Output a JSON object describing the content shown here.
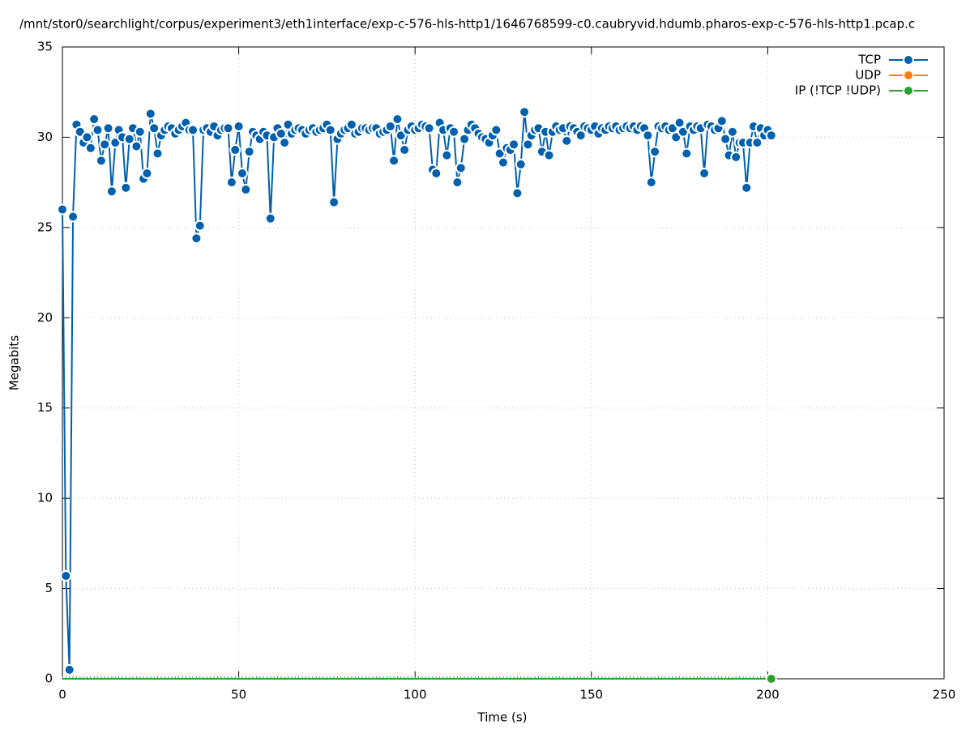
{
  "chart_data": {
    "type": "line",
    "title": "/mnt/stor0/searchlight/corpus/experiment3/eth1interface/exp-c-576-hls-http1/1646768599-c0.caubryvid.hdumb.pharos-exp-c-576-hls-http1.pcap.c",
    "x_label": "Time (s)",
    "y_label": "Megabits",
    "xlim": [
      0,
      250
    ],
    "xticks": [
      0,
      50,
      100,
      150,
      200,
      250
    ],
    "ylim": [
      0,
      35
    ],
    "yticks": [
      0,
      5,
      10,
      15,
      20,
      25,
      30,
      35
    ],
    "grid": true,
    "legend": "top-right",
    "x": [
      0,
      1,
      2,
      3,
      4,
      5,
      6,
      7,
      8,
      9,
      10,
      11,
      12,
      13,
      14,
      15,
      16,
      17,
      18,
      19,
      20,
      21,
      22,
      23,
      24,
      25,
      26,
      27,
      28,
      29,
      30,
      31,
      32,
      33,
      34,
      35,
      36,
      37,
      38,
      39,
      40,
      41,
      42,
      43,
      44,
      45,
      46,
      47,
      48,
      49,
      50,
      51,
      52,
      53,
      54,
      55,
      56,
      57,
      58,
      59,
      60,
      61,
      62,
      63,
      64,
      65,
      66,
      67,
      68,
      69,
      70,
      71,
      72,
      73,
      74,
      75,
      76,
      77,
      78,
      79,
      80,
      81,
      82,
      83,
      84,
      85,
      86,
      87,
      88,
      89,
      90,
      91,
      92,
      93,
      94,
      95,
      96,
      97,
      98,
      99,
      100,
      101,
      102,
      103,
      104,
      105,
      106,
      107,
      108,
      109,
      110,
      111,
      112,
      113,
      114,
      115,
      116,
      117,
      118,
      119,
      120,
      121,
      122,
      123,
      124,
      125,
      126,
      127,
      128,
      129,
      130,
      131,
      132,
      133,
      134,
      135,
      136,
      137,
      138,
      139,
      140,
      141,
      142,
      143,
      144,
      145,
      146,
      147,
      148,
      149,
      150,
      151,
      152,
      153,
      154,
      155,
      156,
      157,
      158,
      159,
      160,
      161,
      162,
      163,
      164,
      165,
      166,
      167,
      168,
      169,
      170,
      171,
      172,
      173,
      174,
      175,
      176,
      177,
      178,
      179,
      180,
      181,
      182,
      183,
      184,
      185,
      186,
      187,
      188,
      189,
      190,
      191,
      192,
      193,
      194,
      195,
      196,
      197,
      198,
      199,
      200,
      201
    ],
    "series": [
      {
        "name": "TCP",
        "color": "#0060ad",
        "values": [
          26.0,
          5.7,
          0.5,
          25.6,
          30.7,
          30.3,
          29.7,
          30.0,
          29.4,
          31.0,
          30.4,
          28.7,
          29.6,
          30.5,
          27.0,
          29.7,
          30.4,
          30.0,
          27.2,
          29.9,
          30.5,
          29.5,
          30.3,
          27.7,
          28.0,
          31.3,
          30.5,
          29.1,
          30.1,
          30.4,
          30.6,
          30.5,
          30.2,
          30.4,
          30.6,
          30.8,
          30.4,
          30.4,
          24.4,
          25.1,
          30.4,
          30.5,
          30.3,
          30.6,
          30.1,
          30.4,
          30.5,
          30.5,
          27.5,
          29.3,
          30.6,
          28.0,
          27.1,
          29.2,
          30.3,
          30.1,
          29.9,
          30.3,
          30.1,
          25.5,
          30.0,
          30.5,
          30.2,
          29.7,
          30.7,
          30.2,
          30.4,
          30.5,
          30.4,
          30.2,
          30.4,
          30.5,
          30.3,
          30.4,
          30.5,
          30.7,
          30.4,
          26.4,
          29.9,
          30.2,
          30.4,
          30.5,
          30.7,
          30.2,
          30.3,
          30.5,
          30.5,
          30.4,
          30.5,
          30.5,
          30.2,
          30.3,
          30.4,
          30.6,
          28.7,
          31.0,
          30.1,
          29.3,
          30.4,
          30.6,
          30.4,
          30.5,
          30.7,
          30.6,
          30.5,
          28.2,
          28.0,
          30.8,
          30.4,
          29.0,
          30.5,
          30.3,
          27.5,
          28.3,
          29.9,
          30.4,
          30.7,
          30.5,
          30.2,
          30.0,
          29.9,
          29.7,
          30.1,
          30.4,
          29.1,
          28.6,
          29.4,
          29.3,
          29.6,
          26.9,
          28.5,
          31.4,
          29.6,
          30.1,
          30.4,
          30.5,
          29.2,
          30.3,
          29.0,
          30.3,
          30.6,
          30.4,
          30.5,
          29.8,
          30.6,
          30.5,
          30.3,
          30.1,
          30.6,
          30.5,
          30.4,
          30.6,
          30.2,
          30.5,
          30.4,
          30.6,
          30.5,
          30.6,
          30.4,
          30.5,
          30.6,
          30.5,
          30.6,
          30.4,
          30.6,
          30.5,
          30.1,
          27.5,
          29.2,
          30.6,
          30.5,
          30.6,
          30.4,
          30.5,
          30.0,
          30.8,
          30.3,
          29.1,
          30.6,
          30.4,
          30.6,
          30.5,
          28.0,
          30.7,
          30.6,
          30.4,
          30.5,
          30.9,
          29.9,
          29.0,
          30.3,
          28.9,
          29.7,
          29.7,
          27.2,
          29.7,
          30.6,
          29.7,
          30.5,
          30.1,
          30.4,
          30.1
        ]
      },
      {
        "name": "UDP",
        "color": "#ff7f0e",
        "values": [
          0,
          0,
          0,
          0,
          0,
          0,
          0,
          0,
          0,
          0,
          0,
          0,
          0,
          0,
          0,
          0,
          0,
          0,
          0,
          0,
          0,
          0,
          0,
          0,
          0,
          0,
          0,
          0,
          0,
          0,
          0,
          0,
          0,
          0,
          0,
          0,
          0,
          0,
          0,
          0,
          0,
          0,
          0,
          0,
          0,
          0,
          0,
          0,
          0,
          0,
          0,
          0,
          0,
          0,
          0,
          0,
          0,
          0,
          0,
          0,
          0,
          0,
          0,
          0,
          0,
          0,
          0,
          0,
          0,
          0,
          0,
          0,
          0,
          0,
          0,
          0,
          0,
          0,
          0,
          0,
          0,
          0,
          0,
          0,
          0,
          0,
          0,
          0,
          0,
          0,
          0,
          0,
          0,
          0,
          0,
          0,
          0,
          0,
          0,
          0,
          0,
          0,
          0,
          0,
          0,
          0,
          0,
          0,
          0,
          0,
          0,
          0,
          0,
          0,
          0,
          0,
          0,
          0,
          0,
          0,
          0,
          0,
          0,
          0,
          0,
          0,
          0,
          0,
          0,
          0,
          0,
          0,
          0,
          0,
          0,
          0,
          0,
          0,
          0,
          0,
          0,
          0,
          0,
          0,
          0,
          0,
          0,
          0,
          0,
          0,
          0,
          0,
          0,
          0,
          0,
          0,
          0,
          0,
          0,
          0,
          0,
          0,
          0,
          0,
          0,
          0,
          0,
          0,
          0,
          0,
          0,
          0,
          0,
          0,
          0,
          0,
          0,
          0,
          0,
          0,
          0,
          0,
          0,
          0,
          0,
          0,
          0,
          0,
          0,
          0,
          0,
          0,
          0,
          0,
          0,
          0,
          0,
          0,
          0,
          0,
          0,
          0
        ]
      },
      {
        "name": "IP (!TCP  !UDP)",
        "color": "#2ca02c",
        "values": [
          0,
          0,
          0,
          0,
          0,
          0,
          0,
          0,
          0,
          0,
          0,
          0,
          0,
          0,
          0,
          0,
          0,
          0,
          0,
          0,
          0,
          0,
          0,
          0,
          0,
          0,
          0,
          0,
          0,
          0,
          0,
          0,
          0,
          0,
          0,
          0,
          0,
          0,
          0,
          0,
          0,
          0,
          0,
          0,
          0,
          0,
          0,
          0,
          0,
          0,
          0,
          0,
          0,
          0,
          0,
          0,
          0,
          0,
          0,
          0,
          0,
          0,
          0,
          0,
          0,
          0,
          0,
          0,
          0,
          0,
          0,
          0,
          0,
          0,
          0,
          0,
          0,
          0,
          0,
          0,
          0,
          0,
          0,
          0,
          0,
          0,
          0,
          0,
          0,
          0,
          0,
          0,
          0,
          0,
          0,
          0,
          0,
          0,
          0,
          0,
          0,
          0,
          0,
          0,
          0,
          0,
          0,
          0,
          0,
          0,
          0,
          0,
          0,
          0,
          0,
          0,
          0,
          0,
          0,
          0,
          0,
          0,
          0,
          0,
          0,
          0,
          0,
          0,
          0,
          0,
          0,
          0,
          0,
          0,
          0,
          0,
          0,
          0,
          0,
          0,
          0,
          0,
          0,
          0,
          0,
          0,
          0,
          0,
          0,
          0,
          0,
          0,
          0,
          0,
          0,
          0,
          0,
          0,
          0,
          0,
          0,
          0,
          0,
          0,
          0,
          0,
          0,
          0,
          0,
          0,
          0,
          0,
          0,
          0,
          0,
          0,
          0,
          0,
          0,
          0,
          0,
          0,
          0,
          0,
          0,
          0,
          0,
          0,
          0,
          0,
          0,
          0,
          0,
          0,
          0,
          0,
          0,
          0,
          0,
          0,
          0,
          0
        ]
      }
    ]
  }
}
